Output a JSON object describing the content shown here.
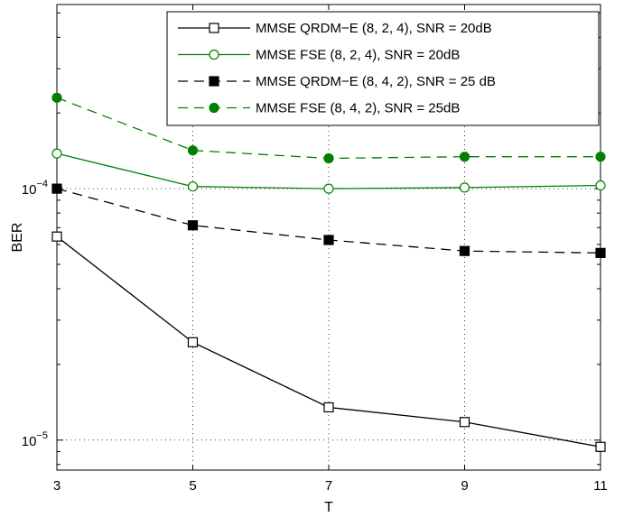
{
  "chart_data": {
    "type": "line",
    "xlabel": "T",
    "ylabel": "BER",
    "x_ticks": [
      "3",
      "5",
      "7",
      "9",
      "11"
    ],
    "y_ticks": [
      {
        "value": 0.0001,
        "base": "10",
        "exp": "−4"
      },
      {
        "value": 1e-05,
        "base": "10",
        "exp": "−5"
      }
    ],
    "xlim": [
      3,
      11
    ],
    "ylim": [
      7.6e-06,
      0.00054
    ],
    "y_scale": "log",
    "grid": true,
    "legend_position": "top-right",
    "x": [
      3,
      5,
      7,
      9,
      11
    ],
    "series": [
      {
        "name": "MMSE QRDM−E (8, 2, 4), SNR = 20dB",
        "color": "#000000",
        "dash": "solid",
        "marker": "square-open",
        "values": [
          6.45e-05,
          2.45e-05,
          1.35e-05,
          1.18e-05,
          9.4e-06
        ]
      },
      {
        "name": "MMSE FSE (8, 2, 4), SNR = 20dB",
        "color": "#008000",
        "dash": "solid",
        "marker": "circle-open",
        "values": [
          0.000138,
          0.000102,
          0.0001,
          0.000101,
          0.000103
        ]
      },
      {
        "name": "MMSE QRDM−E (8, 4, 2), SNR = 25 dB",
        "color": "#000000",
        "dash": "dashed",
        "marker": "square-filled",
        "values": [
          0.0001,
          7.15e-05,
          6.25e-05,
          5.65e-05,
          5.55e-05
        ]
      },
      {
        "name": "MMSE FSE (8, 4, 2), SNR = 25dB",
        "color": "#008000",
        "dash": "dashed",
        "marker": "circle-filled",
        "values": [
          0.00023,
          0.000142,
          0.000132,
          0.000134,
          0.000134
        ]
      }
    ]
  }
}
